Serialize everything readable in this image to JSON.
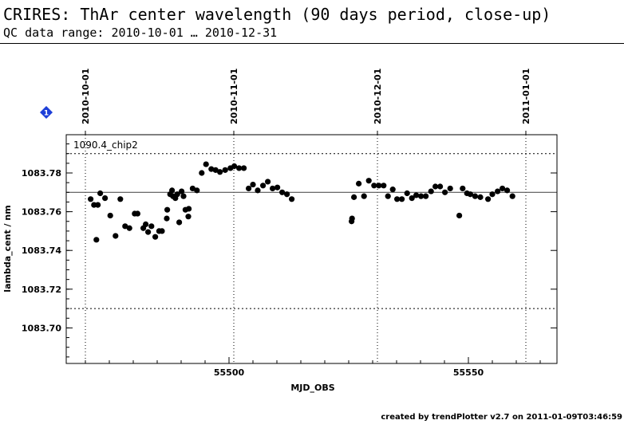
{
  "header": {
    "title": "CRIRES: ThAr center wavelength (90 days period, close-up)",
    "subtitle": "QC data range: 2010-10-01 … 2010-12-31"
  },
  "footer": {
    "text": "created by trendPlotter v2.7 on 2011-01-09T03:46:59"
  },
  "badge": {
    "label": "1",
    "color": "#1d3fd8"
  },
  "chart_data": {
    "type": "scatter",
    "panel_label": "1090.4_chip2",
    "xlabel": "MJD_OBS",
    "ylabel": "lambda_cent / nm",
    "xlim": [
      55466,
      55566
    ],
    "ylim": [
      1083.68,
      1083.8
    ],
    "x_ticks": [
      55500,
      55550
    ],
    "y_ticks": [
      1083.7,
      1083.72,
      1083.74,
      1083.76,
      1083.78
    ],
    "date_ticks": [
      {
        "label": "2010-10-01",
        "mjd": 55470
      },
      {
        "label": "2010-11-01",
        "mjd": 55501
      },
      {
        "label": "2010-12-01",
        "mjd": 55531
      },
      {
        "label": "2011-01-01",
        "mjd": 55562
      }
    ],
    "reference_line": 1083.77,
    "threshold_lines": [
      1083.79,
      1083.71
    ],
    "grid": "vertical dotted at month starts",
    "series": [
      {
        "marker_color": "#000000",
        "points": [
          [
            55471.1,
            1083.7665
          ],
          [
            55471.8,
            1083.7635
          ],
          [
            55472.3,
            1083.7455
          ],
          [
            55472.6,
            1083.7635
          ],
          [
            55473.1,
            1083.7695
          ],
          [
            55474.1,
            1083.767
          ],
          [
            55475.2,
            1083.758
          ],
          [
            55476.3,
            1083.7475
          ],
          [
            55477.3,
            1083.7665
          ],
          [
            55478.3,
            1083.7525
          ],
          [
            55479.2,
            1083.7515
          ],
          [
            55480.3,
            1083.759
          ],
          [
            55480.9,
            1083.759
          ],
          [
            55482.1,
            1083.7515
          ],
          [
            55482.6,
            1083.7535
          ],
          [
            55483.1,
            1083.7495
          ],
          [
            55483.8,
            1083.7525
          ],
          [
            55484.6,
            1083.747
          ],
          [
            55485.4,
            1083.75
          ],
          [
            55486.0,
            1083.75
          ],
          [
            55487.0,
            1083.7565
          ],
          [
            55487.1,
            1083.761
          ],
          [
            55487.7,
            1083.769
          ],
          [
            55488.1,
            1083.771
          ],
          [
            55488.3,
            1083.768
          ],
          [
            55488.8,
            1083.767
          ],
          [
            55489.2,
            1083.769
          ],
          [
            55489.6,
            1083.7545
          ],
          [
            55490.1,
            1083.7705
          ],
          [
            55490.5,
            1083.768
          ],
          [
            55490.9,
            1083.761
          ],
          [
            55491.5,
            1083.7575
          ],
          [
            55491.6,
            1083.7615
          ],
          [
            55492.4,
            1083.772
          ],
          [
            55493.3,
            1083.771
          ],
          [
            55494.3,
            1083.78
          ],
          [
            55495.2,
            1083.7845
          ],
          [
            55496.3,
            1083.782
          ],
          [
            55497.2,
            1083.7815
          ],
          [
            55498.1,
            1083.7805
          ],
          [
            55499.2,
            1083.7815
          ],
          [
            55500.3,
            1083.7825
          ],
          [
            55501.1,
            1083.7835
          ],
          [
            55502.1,
            1083.7825
          ],
          [
            55503.1,
            1083.7825
          ],
          [
            55504.1,
            1083.772
          ],
          [
            55505.0,
            1083.774
          ],
          [
            55506.0,
            1083.771
          ],
          [
            55507.1,
            1083.7735
          ],
          [
            55508.1,
            1083.7755
          ],
          [
            55509.1,
            1083.772
          ],
          [
            55510.1,
            1083.7725
          ],
          [
            55511.1,
            1083.77
          ],
          [
            55512.1,
            1083.769
          ],
          [
            55513.1,
            1083.7665
          ],
          [
            55525.6,
            1083.755
          ],
          [
            55525.7,
            1083.7565
          ],
          [
            55526.1,
            1083.7675
          ],
          [
            55527.1,
            1083.7745
          ],
          [
            55528.2,
            1083.768
          ],
          [
            55529.2,
            1083.776
          ],
          [
            55530.3,
            1083.7735
          ],
          [
            55531.3,
            1083.7735
          ],
          [
            55532.3,
            1083.7735
          ],
          [
            55533.2,
            1083.768
          ],
          [
            55534.2,
            1083.7715
          ],
          [
            55535.1,
            1083.7665
          ],
          [
            55536.1,
            1083.7665
          ],
          [
            55537.2,
            1083.7695
          ],
          [
            55538.2,
            1083.767
          ],
          [
            55539.1,
            1083.7685
          ],
          [
            55540.1,
            1083.768
          ],
          [
            55541.1,
            1083.768
          ],
          [
            55542.2,
            1083.7705
          ],
          [
            55543.1,
            1083.773
          ],
          [
            55544.1,
            1083.773
          ],
          [
            55545.1,
            1083.77
          ],
          [
            55546.2,
            1083.772
          ],
          [
            55548.1,
            1083.758
          ],
          [
            55548.8,
            1083.772
          ],
          [
            55549.7,
            1083.7695
          ],
          [
            55550.4,
            1083.769
          ],
          [
            55551.4,
            1083.768
          ],
          [
            55552.5,
            1083.7675
          ],
          [
            55554.1,
            1083.7665
          ],
          [
            55555.0,
            1083.769
          ],
          [
            55556.1,
            1083.7705
          ],
          [
            55557.1,
            1083.772
          ],
          [
            55558.1,
            1083.771
          ],
          [
            55559.2,
            1083.768
          ]
        ]
      }
    ]
  }
}
